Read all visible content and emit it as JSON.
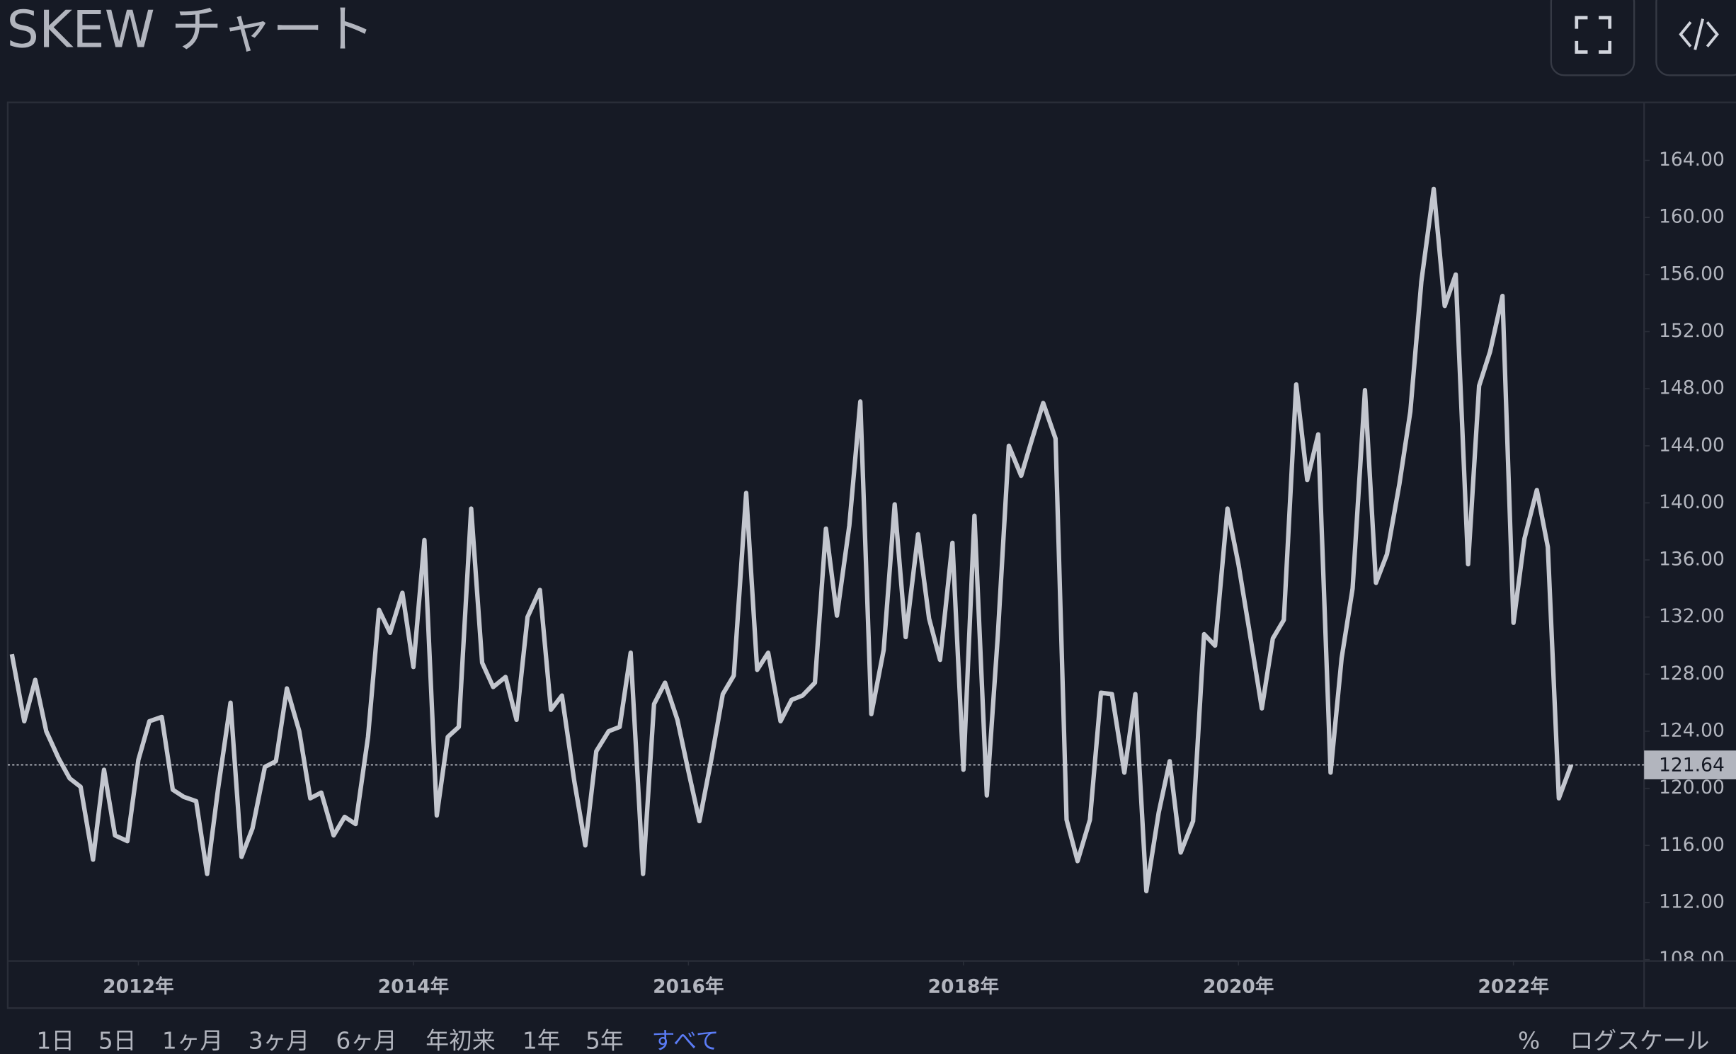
{
  "chart_data": {
    "type": "line",
    "title": "SKEW チャート",
    "color": "#c3c6ce",
    "x": [
      2011.08,
      2011.17,
      2011.25,
      2011.33,
      2011.42,
      2011.5,
      2011.58,
      2011.67,
      2011.75,
      2011.83,
      2011.92,
      2012,
      2012.08,
      2012.17,
      2012.25,
      2012.33,
      2012.42,
      2012.5,
      2012.58,
      2012.67,
      2012.75,
      2012.83,
      2012.92,
      2013,
      2013.08,
      2013.17,
      2013.25,
      2013.33,
      2013.42,
      2013.5,
      2013.58,
      2013.67,
      2013.75,
      2013.83,
      2013.92,
      2014,
      2014.08,
      2014.17,
      2014.25,
      2014.33,
      2014.42,
      2014.5,
      2014.58,
      2014.67,
      2014.75,
      2014.83,
      2014.92,
      2015,
      2015.08,
      2015.17,
      2015.25,
      2015.33,
      2015.42,
      2015.5,
      2015.58,
      2015.67,
      2015.75,
      2015.83,
      2015.92,
      2016,
      2016.08,
      2016.17,
      2016.25,
      2016.33,
      2016.42,
      2016.5,
      2016.58,
      2016.67,
      2016.75,
      2016.83,
      2016.92,
      2017,
      2017.08,
      2017.17,
      2017.25,
      2017.33,
      2017.42,
      2017.5,
      2017.58,
      2017.67,
      2017.75,
      2017.83,
      2017.92,
      2018,
      2018.08,
      2018.17,
      2018.25,
      2018.33,
      2018.42,
      2018.5,
      2018.58,
      2018.67,
      2018.75,
      2018.83,
      2018.92,
      2019,
      2019.08,
      2019.17,
      2019.25,
      2019.33,
      2019.42,
      2019.5,
      2019.58,
      2019.67,
      2019.75,
      2019.83,
      2019.92,
      2020,
      2020.08,
      2020.17,
      2020.25,
      2020.33,
      2020.42,
      2020.5,
      2020.58,
      2020.67,
      2020.75,
      2020.83,
      2020.92,
      2021,
      2021.08,
      2021.17,
      2021.25,
      2021.33,
      2021.42,
      2021.5,
      2021.58,
      2021.67,
      2021.75,
      2021.83,
      2021.92,
      2022,
      2022.08,
      2022.17,
      2022.25,
      2022.33,
      2022.42
    ],
    "values": [
      129.4,
      124.7,
      127.6,
      124.0,
      122.1,
      120.7,
      120.1,
      115.0,
      121.3,
      116.7,
      116.3,
      122.0,
      124.7,
      125.0,
      119.9,
      119.4,
      119.1,
      114.0,
      120.0,
      126.0,
      115.2,
      117.2,
      121.5,
      121.9,
      127.0,
      124.0,
      119.3,
      119.7,
      116.7,
      118.0,
      117.5,
      123.6,
      132.5,
      130.9,
      133.7,
      128.5,
      137.4,
      118.1,
      123.6,
      124.3,
      139.6,
      128.8,
      127.1,
      127.8,
      124.8,
      132.0,
      133.9,
      125.5,
      126.5,
      120.5,
      116.0,
      122.6,
      124.0,
      124.3,
      129.5,
      114.0,
      125.9,
      127.4,
      124.8,
      121.2,
      117.7,
      122.2,
      126.6,
      127.9,
      140.7,
      128.3,
      129.5,
      124.7,
      126.2,
      126.5,
      127.4,
      138.2,
      132.1,
      138.4,
      147.1,
      125.2,
      129.7,
      139.9,
      130.6,
      137.8,
      131.9,
      129.0,
      137.2,
      121.3,
      139.1,
      119.5,
      130.7,
      144.0,
      141.9,
      144.5,
      147.0,
      144.5,
      117.8,
      114.9,
      117.8,
      126.7,
      126.6,
      121.1,
      126.6,
      112.8,
      118.3,
      121.9,
      115.5,
      117.7,
      130.8,
      130.0,
      139.6,
      135.7,
      131.0,
      125.6,
      130.5,
      131.8,
      148.3,
      141.6,
      144.8,
      121.1,
      129.1,
      134.0,
      147.9,
      134.4,
      136.4,
      141.3,
      146.4,
      155.5,
      162.0,
      153.8,
      156.0,
      135.7,
      148.2,
      150.6,
      154.5,
      131.6,
      137.5,
      140.9,
      136.9,
      119.3,
      121.64
    ],
    "xlim": [
      2011.05,
      2022.95
    ],
    "xticks": [
      {
        "value": 2012,
        "label": "2012年"
      },
      {
        "value": 2014,
        "label": "2014年"
      },
      {
        "value": 2016,
        "label": "2016年"
      },
      {
        "value": 2018,
        "label": "2018年"
      },
      {
        "value": 2020,
        "label": "2020年"
      },
      {
        "value": 2022,
        "label": "2022年"
      }
    ],
    "ylim": [
      107.9,
      168.1
    ],
    "yticks": [
      {
        "value": 108,
        "label": "108.00"
      },
      {
        "value": 112,
        "label": "112.00"
      },
      {
        "value": 116,
        "label": "116.00"
      },
      {
        "value": 120,
        "label": "120.00"
      },
      {
        "value": 124,
        "label": "124.00"
      },
      {
        "value": 128,
        "label": "128.00"
      },
      {
        "value": 132,
        "label": "132.00"
      },
      {
        "value": 136,
        "label": "136.00"
      },
      {
        "value": 140,
        "label": "140.00"
      },
      {
        "value": 144,
        "label": "144.00"
      },
      {
        "value": 148,
        "label": "148.00"
      },
      {
        "value": 152,
        "label": "152.00"
      },
      {
        "value": 156,
        "label": "156.00"
      },
      {
        "value": 160,
        "label": "160.00"
      },
      {
        "value": 164,
        "label": "164.00"
      }
    ],
    "grid": false
  },
  "range_buttons": [
    "1日",
    "5日",
    "1ヶ月",
    "3ヶ月",
    "6ヶ月",
    "年初来",
    "1年",
    "5年",
    "すべて"
  ],
  "selected_range": 8,
  "percent_button": "%",
  "log_scale_button": "ログスケール"
}
